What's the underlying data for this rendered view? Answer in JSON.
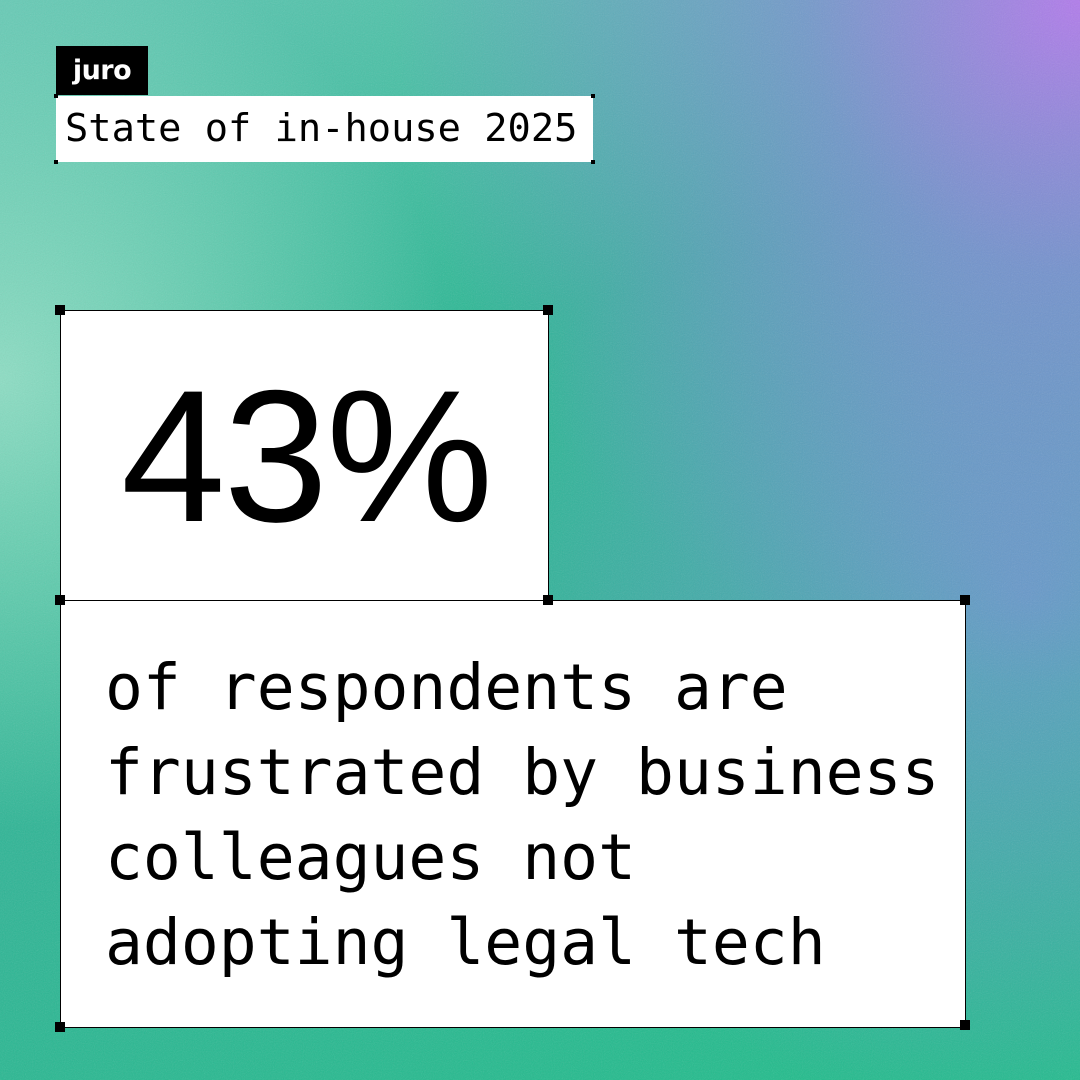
{
  "brand": "juro",
  "report_title": "State of in-house 2025",
  "stat": "43%",
  "description_lines": [
    "of respondents are",
    "frustrated by business",
    "colleagues not",
    "adopting legal tech"
  ]
}
